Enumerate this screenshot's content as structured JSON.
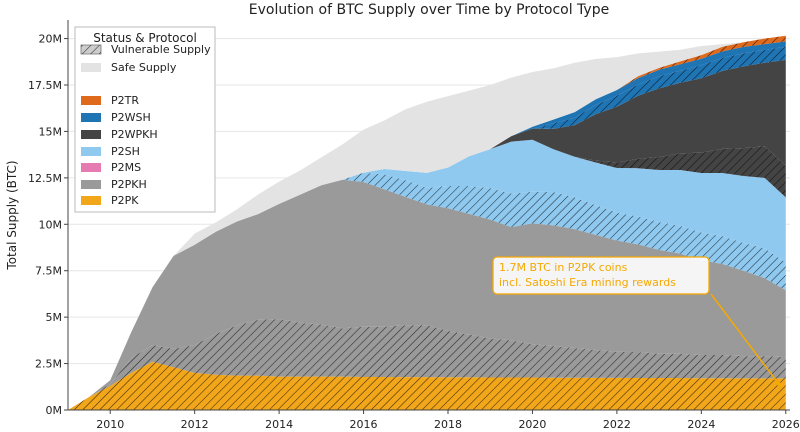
{
  "chart_data": {
    "type": "area",
    "title": "Evolution of BTC Supply over Time by Protocol Type",
    "xlabel": "",
    "ylabel": "Total Supply (BTC)",
    "xlim": [
      2009.0,
      2026.1
    ],
    "ylim": [
      0,
      21000000
    ],
    "x_ticks": [
      "2010",
      "2012",
      "2014",
      "2016",
      "2018",
      "2020",
      "2022",
      "2024",
      "2026"
    ],
    "y_ticks": [
      "0M",
      "2.5M",
      "5M",
      "7.5M",
      "10M",
      "12.5M",
      "15M",
      "17.5M",
      "20M"
    ],
    "legend": {
      "title": "Status & Protocol",
      "position": "top-left",
      "entries": [
        {
          "label": "Vulnerable Supply",
          "kind": "hatch"
        },
        {
          "label": "Safe Supply",
          "kind": "safe"
        },
        {
          "label": "P2TR",
          "kind": "P2TR"
        },
        {
          "label": "P2WSH",
          "kind": "P2WSH"
        },
        {
          "label": "P2WPKH",
          "kind": "P2WPKH"
        },
        {
          "label": "P2SH",
          "kind": "P2SH"
        },
        {
          "label": "P2MS",
          "kind": "P2MS"
        },
        {
          "label": "P2PKH",
          "kind": "P2PKH"
        },
        {
          "label": "P2PK",
          "kind": "P2PK"
        }
      ]
    },
    "colors": {
      "P2TR": "#E06A1C",
      "P2WSH": "#1F74B4",
      "P2WPKH": "#444444",
      "P2SH": "#8FC9EF",
      "P2MS": "#E57BB0",
      "P2PKH": "#9A9A9A",
      "P2PK": "#F2A61A",
      "safe": "#E3E3E3"
    },
    "x": [
      2009.0,
      2009.5,
      2010.0,
      2010.5,
      2011.0,
      2011.5,
      2012.0,
      2012.5,
      2013.0,
      2013.5,
      2014.0,
      2014.5,
      2015.0,
      2015.5,
      2016.0,
      2016.5,
      2017.0,
      2017.5,
      2018.0,
      2018.5,
      2019.0,
      2019.5,
      2020.0,
      2020.5,
      2021.0,
      2021.5,
      2022.0,
      2022.5,
      2023.0,
      2023.5,
      2024.0,
      2024.5,
      2025.0,
      2025.5,
      2026.0
    ],
    "total": [
      0,
      700000,
      1600000,
      4200000,
      6600000,
      8300000,
      9500000,
      10100000,
      10800000,
      11600000,
      12300000,
      12900000,
      13600000,
      14300000,
      15100000,
      15600000,
      16200000,
      16600000,
      16900000,
      17200000,
      17500000,
      17900000,
      18200000,
      18400000,
      18700000,
      18900000,
      19000000,
      19200000,
      19300000,
      19400000,
      19600000,
      19700000,
      19800000,
      19900000,
      19950000
    ],
    "series": [
      {
        "name": "P2PK",
        "key": "P2PK",
        "vulnerable": [
          0,
          700000,
          1300000,
          2000000,
          2600000,
          2300000,
          2000000,
          1900000,
          1850000,
          1850000,
          1800000,
          1800000,
          1800000,
          1800000,
          1780000,
          1780000,
          1770000,
          1770000,
          1760000,
          1760000,
          1750000,
          1750000,
          1750000,
          1740000,
          1740000,
          1730000,
          1730000,
          1720000,
          1720000,
          1720000,
          1710000,
          1710000,
          1700000,
          1700000,
          1700000
        ],
        "safe": [
          0,
          0,
          0,
          0,
          0,
          0,
          0,
          0,
          0,
          0,
          0,
          0,
          0,
          0,
          0,
          0,
          0,
          0,
          0,
          0,
          0,
          0,
          0,
          0,
          0,
          0,
          0,
          0,
          0,
          0,
          0,
          0,
          0,
          0,
          0
        ]
      },
      {
        "name": "P2PKH",
        "key": "P2PKH",
        "vulnerable": [
          0,
          0,
          100000,
          800000,
          900000,
          1000000,
          1500000,
          2200000,
          2700000,
          3000000,
          3100000,
          2900000,
          2800000,
          2600000,
          2700000,
          2700000,
          2800000,
          2800000,
          2500000,
          2300000,
          2100000,
          2000000,
          1800000,
          1700000,
          1600000,
          1500000,
          1400000,
          1400000,
          1300000,
          1300000,
          1250000,
          1250000,
          1200000,
          1200000,
          1150000
        ],
        "safe": [
          0,
          0,
          200000,
          1400000,
          3100000,
          5000000,
          5400000,
          5500000,
          5600000,
          5700000,
          6200000,
          6900000,
          7500000,
          8000000,
          7800000,
          7400000,
          6900000,
          6500000,
          6600000,
          6500000,
          6400000,
          6100000,
          6500000,
          6500000,
          6400000,
          6200000,
          6000000,
          5800000,
          5600000,
          5400000,
          5100000,
          4900000,
          4600000,
          4200000,
          3600000
        ]
      },
      {
        "name": "P2MS",
        "key": "P2MS",
        "vulnerable": [
          0,
          0,
          0,
          0,
          0,
          0,
          0,
          0,
          0,
          0,
          0,
          0,
          0,
          0,
          0,
          0,
          0,
          0,
          0,
          0,
          0,
          0,
          0,
          0,
          0,
          0,
          0,
          0,
          0,
          0,
          0,
          0,
          0,
          0,
          0
        ],
        "safe": [
          0,
          0,
          0,
          0,
          0,
          0,
          0,
          0,
          0,
          0,
          0,
          0,
          0,
          0,
          0,
          0,
          0,
          0,
          0,
          0,
          0,
          0,
          0,
          0,
          0,
          0,
          0,
          0,
          0,
          0,
          0,
          0,
          0,
          0,
          0
        ]
      },
      {
        "name": "P2SH",
        "key": "P2SH",
        "vulnerable": [
          0,
          0,
          0,
          0,
          0,
          0,
          0,
          0,
          0,
          0,
          0,
          0,
          0,
          0,
          500000,
          800000,
          900000,
          900000,
          1200000,
          1500000,
          1700000,
          1800000,
          1700000,
          1800000,
          1700000,
          1600000,
          1500000,
          1500000,
          1500000,
          1500000,
          1500000,
          1500000,
          1500000,
          1600000,
          1500000
        ],
        "safe": [
          0,
          0,
          0,
          0,
          0,
          0,
          0,
          0,
          0,
          0,
          0,
          0,
          0,
          0,
          0,
          300000,
          500000,
          800000,
          1000000,
          1600000,
          2100000,
          2800000,
          2800000,
          2300000,
          2200000,
          2300000,
          2400000,
          2600000,
          2800000,
          3000000,
          3200000,
          3400000,
          3600000,
          3800000,
          3500000
        ]
      },
      {
        "name": "P2WPKH",
        "key": "P2WPKH",
        "vulnerable": [
          0,
          0,
          0,
          0,
          0,
          0,
          0,
          0,
          0,
          0,
          0,
          0,
          0,
          0,
          0,
          0,
          0,
          0,
          0,
          0,
          0,
          0,
          0,
          0,
          0,
          100000,
          300000,
          500000,
          700000,
          900000,
          1100000,
          1300000,
          1500000,
          1700000,
          1700000
        ],
        "safe": [
          0,
          0,
          0,
          0,
          0,
          0,
          0,
          0,
          0,
          0,
          0,
          0,
          0,
          0,
          0,
          0,
          0,
          0,
          0,
          0,
          0,
          300000,
          600000,
          1100000,
          1700000,
          2500000,
          3000000,
          3400000,
          3700000,
          3800000,
          4000000,
          4200000,
          4400000,
          4500000,
          5700000
        ]
      },
      {
        "name": "P2WSH",
        "key": "P2WSH",
        "vulnerable": [
          0,
          0,
          0,
          0,
          0,
          0,
          0,
          0,
          0,
          0,
          0,
          0,
          0,
          0,
          0,
          0,
          0,
          0,
          0,
          0,
          0,
          0,
          0,
          300000,
          400000,
          500000,
          600000,
          600000,
          650000,
          650000,
          700000,
          700000,
          700000,
          700000,
          700000
        ],
        "safe": [
          0,
          0,
          0,
          0,
          0,
          0,
          0,
          0,
          0,
          0,
          0,
          0,
          0,
          0,
          0,
          0,
          0,
          0,
          0,
          0,
          0,
          0,
          100000,
          200000,
          300000,
          300000,
          300000,
          350000,
          350000,
          350000,
          350000,
          350000,
          350000,
          300000,
          300000
        ]
      },
      {
        "name": "P2TR",
        "key": "P2TR",
        "vulnerable": [
          0,
          0,
          0,
          0,
          0,
          0,
          0,
          0,
          0,
          0,
          0,
          0,
          0,
          0,
          0,
          0,
          0,
          0,
          0,
          0,
          0,
          0,
          0,
          0,
          0,
          0,
          0,
          100000,
          100000,
          150000,
          200000,
          250000,
          250000,
          300000,
          300000
        ],
        "safe": [
          0,
          0,
          0,
          0,
          0,
          0,
          0,
          0,
          0,
          0,
          0,
          0,
          0,
          0,
          0,
          0,
          0,
          0,
          0,
          0,
          0,
          0,
          0,
          0,
          0,
          0,
          0,
          0,
          0,
          0,
          0,
          0,
          0,
          0,
          0
        ]
      }
    ],
    "annotation": {
      "text_line1": "1.7M BTC in P2PK coins",
      "text_line2": "incl. Satoshi Era mining rewards",
      "target_x": 2025.9,
      "target_y": 1200000,
      "color": "#F5A800"
    },
    "grid": "horizontal"
  }
}
